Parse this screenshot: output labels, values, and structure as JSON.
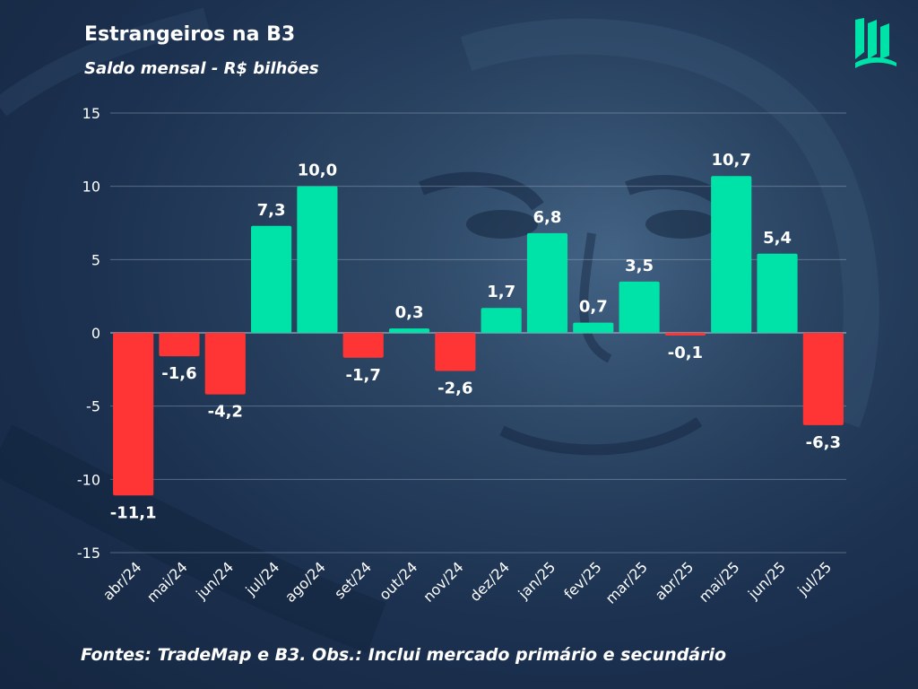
{
  "header": {
    "title": "Estrangeiros na B3",
    "subtitle": "Saldo mensal - R$ bilhões"
  },
  "footer": {
    "note": "Fontes: TradeMap e B3. Obs.: Inclui mercado primário e secundário"
  },
  "logo": {
    "icon": "book-logo-icon",
    "color": "#00e3a8"
  },
  "colors": {
    "positive": "#00e3a8",
    "negative": "#ff3535",
    "background": "#1c3150",
    "gridline": "#9fb0c4",
    "text": "#ffffff"
  },
  "chart_data": {
    "type": "bar",
    "title": "Estrangeiros na B3",
    "subtitle": "Saldo mensal - R$ bilhões",
    "xlabel": "",
    "ylabel": "",
    "categories": [
      "abr/24",
      "mai/24",
      "jun/24",
      "jul/24",
      "ago/24",
      "set/24",
      "out/24",
      "nov/24",
      "dez/24",
      "jan/25",
      "fev/25",
      "mar/25",
      "abr/25",
      "mai/25",
      "jun/25",
      "jul/25"
    ],
    "values": [
      -11.1,
      -1.6,
      -4.2,
      7.3,
      10.0,
      -1.7,
      0.3,
      -2.6,
      1.7,
      6.8,
      0.7,
      3.5,
      -0.1,
      10.7,
      5.4,
      -6.3
    ],
    "data_labels": [
      "-11,1",
      "-1,6",
      "-4,2",
      "7,3",
      "10,0",
      "-1,7",
      "0,3",
      "-2,6",
      "1,7",
      "6,8",
      "0,7",
      "3,5",
      "-0,1",
      "10,7",
      "5,4",
      "-6,3"
    ],
    "ylim": [
      -15,
      15
    ],
    "yticks": [
      15,
      10,
      5,
      0,
      -5,
      -10,
      -15
    ],
    "ytick_labels": [
      "15",
      "10",
      "5",
      "0",
      "-5",
      "-10",
      "-15"
    ],
    "grid": true,
    "legend": "none"
  }
}
